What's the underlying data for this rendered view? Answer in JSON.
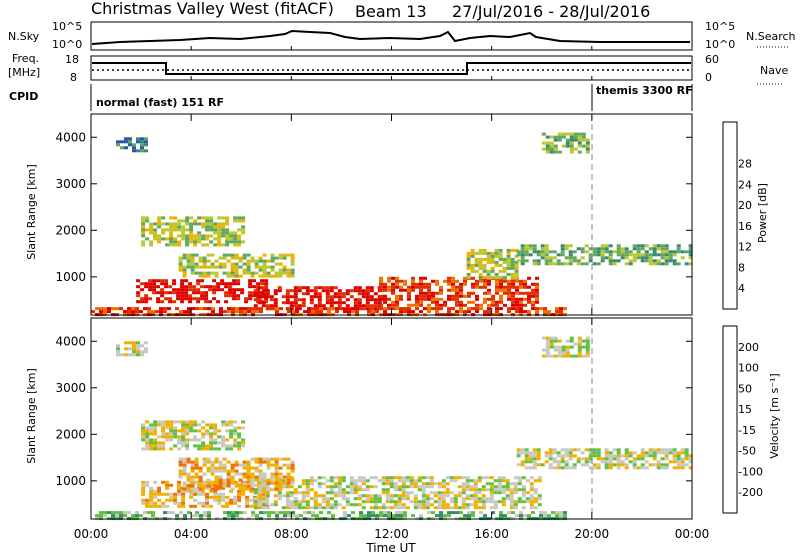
{
  "header": {
    "station": "Christmas Valley West (fitACF)",
    "beam": "Beam 13",
    "daterange": "27/Jul/2016 - 28/Jul/2016"
  },
  "small_panels": {
    "nsky_label": "N.Sky",
    "nsky_ticks": [
      "10^5",
      "10^0"
    ],
    "nsearch_label": "N.Search",
    "nsearch_ticks": [
      "10^5",
      "10^0"
    ],
    "freq_label_1": "Freq.",
    "freq_label_2": "[MHz]",
    "freq_ticks": [
      "18",
      "8"
    ],
    "nave_label": "Nave",
    "nave_ticks": [
      "60",
      "0"
    ],
    "cpid_label": "CPID",
    "cpid_mode_1": "normal (fast) 151 RF",
    "cpid_mode_2": "themis 3300 RF"
  },
  "time_axis": {
    "ticks": [
      "00:00",
      "04:00",
      "08:00",
      "12:00",
      "16:00",
      "20:00",
      "00:00"
    ],
    "label": "Time UT"
  },
  "chart_data": [
    {
      "type": "heatmap",
      "name": "power",
      "ylabel": "Slant Range [km]",
      "y_ticks": [
        "1000",
        "2000",
        "3000",
        "4000"
      ],
      "ylim": [
        180,
        4500
      ],
      "xlim_hours": [
        0,
        24
      ],
      "colorbar_label": "Power [dB]",
      "colorbar_ticks": [
        "4",
        "8",
        "12",
        "16",
        "20",
        "24",
        "28"
      ],
      "colorbar_colors": [
        "#1030e0",
        "#2a55a8",
        "#3a8a70",
        "#60a860",
        "#b8c830",
        "#f0b000",
        "#f07000",
        "#e03000",
        "#e00000"
      ],
      "bands": [
        {
          "t0": 1.8,
          "t1": 7.0,
          "r0": 450,
          "r1": 950,
          "level": 8
        },
        {
          "t0": 6.5,
          "t1": 11.5,
          "r0": 300,
          "r1": 800,
          "level": 8
        },
        {
          "t0": 11.5,
          "t1": 17.8,
          "r0": 400,
          "r1": 1000,
          "level": 7
        },
        {
          "t0": 3.5,
          "t1": 8.0,
          "r0": 1000,
          "r1": 1500,
          "level": 4
        },
        {
          "t0": 15.0,
          "t1": 17.0,
          "r0": 1000,
          "r1": 1600,
          "level": 4
        },
        {
          "t0": 2.0,
          "t1": 6.0,
          "r0": 1700,
          "r1": 2300,
          "level": 4
        },
        {
          "t0": 17.0,
          "t1": 24.0,
          "r0": 1300,
          "r1": 1700,
          "level": 3
        },
        {
          "t0": 0.0,
          "t1": 19.0,
          "r0": 180,
          "r1": 350,
          "level": 7
        },
        {
          "t0": 1.0,
          "t1": 2.2,
          "r0": 3700,
          "r1": 4000,
          "level": 2
        },
        {
          "t0": 18.0,
          "t1": 19.8,
          "r0": 3700,
          "r1": 4100,
          "level": 3
        }
      ]
    },
    {
      "type": "heatmap",
      "name": "velocity",
      "ylabel": "Slant Range [km]",
      "y_ticks": [
        "1000",
        "2000",
        "3000",
        "4000"
      ],
      "ylim": [
        180,
        4500
      ],
      "xlim_hours": [
        0,
        24
      ],
      "colorbar_label": "Velocity [m s⁻¹]",
      "colorbar_ticks": [
        "200",
        "100",
        "50",
        "15",
        "-15",
        "-50",
        "-100",
        "-200"
      ],
      "colorbar_colors": [
        "#1030e0",
        "#2a55a8",
        "#3a8a70",
        "#60c040",
        "#c8c8c0",
        "#f0b000",
        "#f07000",
        "#e03000",
        "#e00000"
      ],
      "bands": [
        {
          "t0": 2.0,
          "t1": 7.0,
          "r0": 450,
          "r1": 1000,
          "level": 5
        },
        {
          "t0": 6.5,
          "t1": 18.0,
          "r0": 400,
          "r1": 1100,
          "level": 4
        },
        {
          "t0": 3.5,
          "t1": 8.0,
          "r0": 800,
          "r1": 1500,
          "level": 5
        },
        {
          "t0": 2.0,
          "t1": 6.0,
          "r0": 1700,
          "r1": 2300,
          "level": 4
        },
        {
          "t0": 17.0,
          "t1": 24.0,
          "r0": 1300,
          "r1": 1700,
          "level": 4
        },
        {
          "t0": 0.0,
          "t1": 19.0,
          "r0": 180,
          "r1": 350,
          "level": 3
        },
        {
          "t0": 1.0,
          "t1": 2.2,
          "r0": 3700,
          "r1": 4000,
          "level": 4
        },
        {
          "t0": 18.0,
          "t1": 19.8,
          "r0": 3700,
          "r1": 4100,
          "level": 4
        }
      ]
    }
  ]
}
